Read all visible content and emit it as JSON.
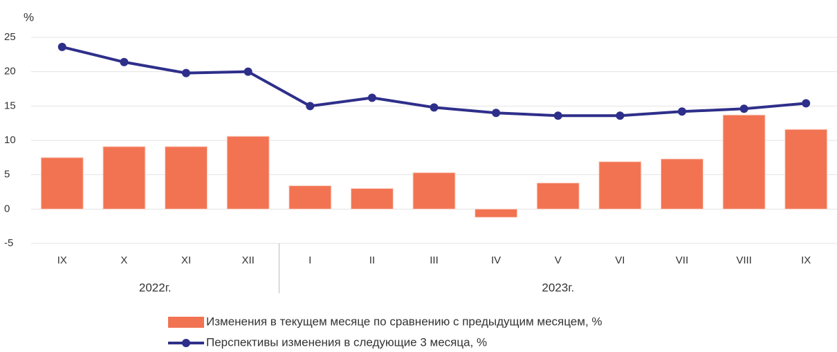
{
  "chart_data": {
    "type": "bar",
    "y_label": "%",
    "categories": [
      "IX",
      "X",
      "XI",
      "XII",
      "I",
      "II",
      "III",
      "IV",
      "V",
      "VI",
      "VII",
      "VIII",
      "IX"
    ],
    "groups": [
      {
        "label": "2022г.",
        "categories": [
          0,
          3
        ]
      },
      {
        "label": "2023г.",
        "categories": [
          4,
          12
        ]
      }
    ],
    "series": [
      {
        "name": "Изменения в текущем месяце по сравнению с предыдущим месяцем, %",
        "type": "bar",
        "color": "#f27352",
        "values": [
          7.5,
          9.1,
          9.1,
          10.6,
          3.4,
          3.0,
          5.3,
          -1.2,
          3.8,
          6.9,
          7.3,
          13.7,
          11.6
        ]
      },
      {
        "name": "Перспективы изменения в следующие 3 месяца, %",
        "type": "line",
        "color": "#2e2f8a",
        "values": [
          23.6,
          21.4,
          19.8,
          20.0,
          15.0,
          16.2,
          14.8,
          14.0,
          13.6,
          13.6,
          14.2,
          14.6,
          15.4
        ]
      }
    ],
    "ylim": [
      -5,
      25
    ],
    "yticks": [
      -5,
      0,
      5,
      10,
      15,
      20,
      25
    ],
    "grid": true,
    "legend": "bottom"
  }
}
